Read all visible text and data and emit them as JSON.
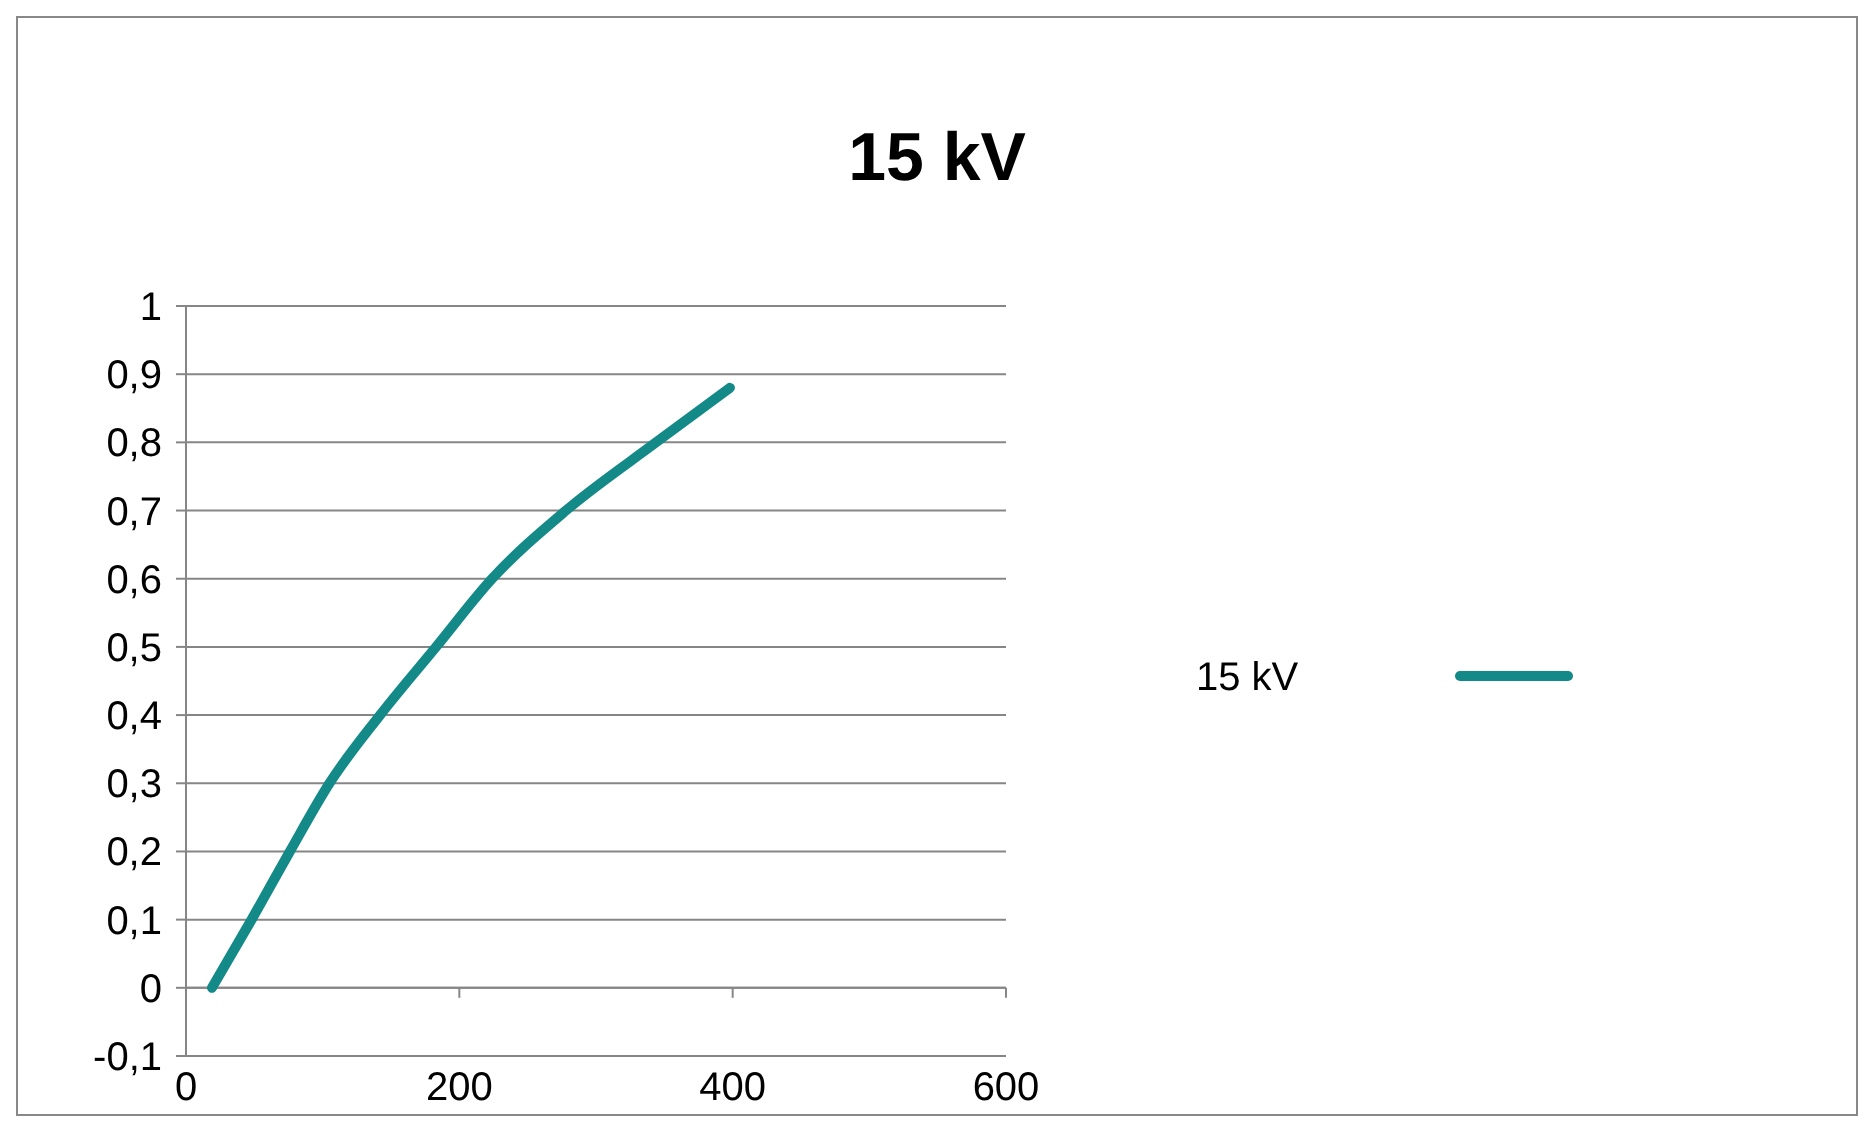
{
  "chart_data": {
    "type": "line",
    "title": "15 kV",
    "x": [
      19,
      48,
      76,
      105,
      142,
      183,
      224,
      278,
      344,
      398
    ],
    "series": [
      {
        "name": "15 kV",
        "color": "#138a87",
        "values": [
          0,
          0.1,
          0.2,
          0.3,
          0.4,
          0.5,
          0.6,
          0.7,
          0.8,
          0.88
        ]
      }
    ],
    "xlim": [
      0,
      600
    ],
    "xticks": [
      0,
      200,
      400,
      600
    ],
    "ylim": [
      -0.1,
      1
    ],
    "yticks": [
      {
        "value": -0.1,
        "label": "-0,1"
      },
      0,
      {
        "value": 0.1,
        "label": "0,1"
      },
      {
        "value": 0.2,
        "label": "0,2"
      },
      {
        "value": 0.3,
        "label": "0,3"
      },
      {
        "value": 0.4,
        "label": "0,4"
      },
      {
        "value": 0.5,
        "label": "0,5"
      },
      {
        "value": 0.6,
        "label": "0,6"
      },
      {
        "value": 0.7,
        "label": "0,7"
      },
      {
        "value": 0.8,
        "label": "0,8"
      },
      {
        "value": 0.9,
        "label": "0,9"
      },
      1
    ],
    "grid": "y",
    "legend": "right",
    "marker": "none",
    "line_style": "solid"
  }
}
